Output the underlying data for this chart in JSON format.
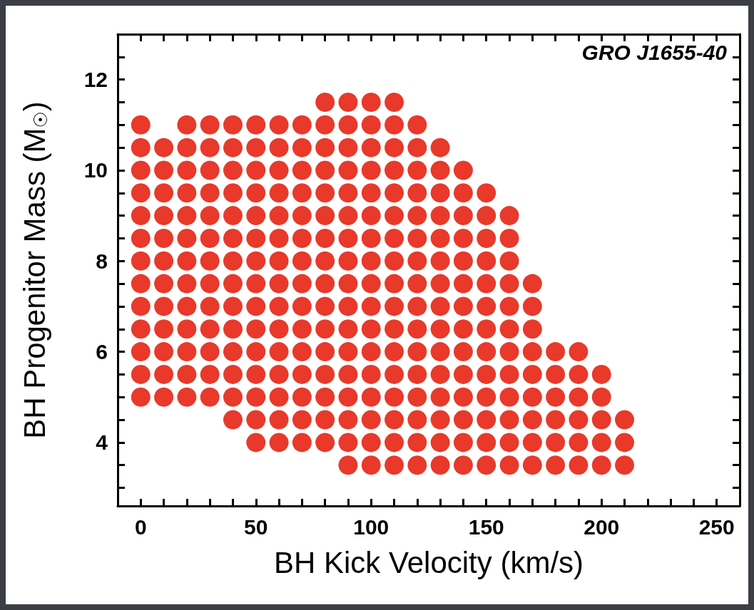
{
  "chart_data": {
    "type": "scatter",
    "xlabel": "BH Kick Velocity (km/s)",
    "ylabel": "BH Progenitor Mass (M$_{☉}$)",
    "annotations": [
      "GRO J1655-40"
    ],
    "marker": "circle",
    "grid": false,
    "xlim": [
      -10,
      260
    ],
    "ylim": [
      2.6,
      13
    ],
    "xticks": [
      0,
      {
        "value": 10,
        "label": null
      },
      {
        "value": 20,
        "label": null
      },
      {
        "value": 30,
        "label": null
      },
      {
        "value": 40,
        "label": null
      },
      50,
      {
        "value": 60,
        "label": null
      },
      {
        "value": 70,
        "label": null
      },
      {
        "value": 80,
        "label": null
      },
      {
        "value": 90,
        "label": null
      },
      100,
      {
        "value": 110,
        "label": null
      },
      {
        "value": 120,
        "label": null
      },
      {
        "value": 130,
        "label": null
      },
      {
        "value": 140,
        "label": null
      },
      150,
      {
        "value": 160,
        "label": null
      },
      {
        "value": 170,
        "label": null
      },
      {
        "value": 180,
        "label": null
      },
      {
        "value": 190,
        "label": null
      },
      200,
      {
        "value": 210,
        "label": null
      },
      {
        "value": 220,
        "label": null
      },
      {
        "value": 230,
        "label": null
      },
      {
        "value": 240,
        "label": null
      },
      250
    ],
    "yticks": [
      {
        "value": 3,
        "label": null
      },
      4,
      {
        "value": 5,
        "label": null
      },
      6,
      {
        "value": 7,
        "label": null
      },
      8,
      {
        "value": 9,
        "label": null
      },
      10,
      {
        "value": 11,
        "label": null
      },
      12,
      {
        "value": 3.5,
        "label": null
      },
      {
        "value": 4.5,
        "label": null
      },
      {
        "value": 5.5,
        "label": null
      },
      {
        "value": 6.5,
        "label": null
      },
      {
        "value": 7.5,
        "label": null
      },
      {
        "value": 8.5,
        "label": null
      },
      {
        "value": 9.5,
        "label": null
      },
      {
        "value": 10.5,
        "label": null
      },
      {
        "value": 11.5,
        "label": null
      },
      {
        "value": 12.5,
        "label": null
      }
    ],
    "series": [
      {
        "color": "#e8392a",
        "x": [
          0,
          0,
          0,
          0,
          0,
          0,
          0,
          0,
          0,
          0,
          0,
          0,
          0,
          10,
          10,
          10,
          10,
          10,
          10,
          10,
          10,
          10,
          10,
          10,
          10,
          20,
          20,
          20,
          20,
          20,
          20,
          20,
          20,
          20,
          20,
          20,
          20,
          20,
          30,
          30,
          30,
          30,
          30,
          30,
          30,
          30,
          30,
          30,
          30,
          30,
          30,
          40,
          40,
          40,
          40,
          40,
          40,
          40,
          40,
          40,
          40,
          40,
          40,
          40,
          40,
          50,
          50,
          50,
          50,
          50,
          50,
          50,
          50,
          50,
          50,
          50,
          50,
          50,
          50,
          50,
          60,
          60,
          60,
          60,
          60,
          60,
          60,
          60,
          60,
          60,
          60,
          60,
          60,
          60,
          60,
          70,
          70,
          70,
          70,
          70,
          70,
          70,
          70,
          70,
          70,
          70,
          70,
          70,
          70,
          70,
          80,
          80,
          80,
          80,
          80,
          80,
          80,
          80,
          80,
          80,
          80,
          80,
          80,
          80,
          80,
          80,
          90,
          90,
          90,
          90,
          90,
          90,
          90,
          90,
          90,
          90,
          90,
          90,
          90,
          90,
          90,
          90,
          90,
          100,
          100,
          100,
          100,
          100,
          100,
          100,
          100,
          100,
          100,
          100,
          100,
          100,
          100,
          100,
          100,
          100,
          110,
          110,
          110,
          110,
          110,
          110,
          110,
          110,
          110,
          110,
          110,
          110,
          110,
          110,
          110,
          110,
          110,
          120,
          120,
          120,
          120,
          120,
          120,
          120,
          120,
          120,
          120,
          120,
          120,
          120,
          120,
          120,
          120,
          130,
          130,
          130,
          130,
          130,
          130,
          130,
          130,
          130,
          130,
          130,
          130,
          130,
          130,
          130,
          140,
          140,
          140,
          140,
          140,
          140,
          140,
          140,
          140,
          140,
          140,
          140,
          140,
          140,
          150,
          150,
          150,
          150,
          150,
          150,
          150,
          150,
          150,
          150,
          150,
          150,
          150,
          160,
          160,
          160,
          160,
          160,
          160,
          160,
          160,
          160,
          160,
          160,
          160,
          170,
          170,
          170,
          170,
          170,
          170,
          170,
          170,
          170,
          180,
          180,
          180,
          180,
          180,
          180,
          190,
          190,
          190,
          190,
          190,
          190,
          200,
          200,
          200,
          200,
          200,
          210,
          210,
          210
        ],
        "values": [
          5,
          5.5,
          6,
          6.5,
          7,
          7.5,
          8,
          8.5,
          9,
          9.5,
          10,
          10.5,
          11,
          5,
          5.5,
          6,
          6.5,
          7,
          7.5,
          8,
          8.5,
          9,
          9.5,
          10,
          10.5,
          5,
          5.5,
          6,
          6.5,
          7,
          7.5,
          8,
          8.5,
          9,
          9.5,
          10,
          10.5,
          11,
          5,
          5.5,
          6,
          6.5,
          7,
          7.5,
          8,
          8.5,
          9,
          9.5,
          10,
          10.5,
          11,
          4.5,
          5,
          5.5,
          6,
          6.5,
          7,
          7.5,
          8,
          8.5,
          9,
          9.5,
          10,
          10.5,
          11,
          4,
          4.5,
          5,
          5.5,
          6,
          6.5,
          7,
          7.5,
          8,
          8.5,
          9,
          9.5,
          10,
          10.5,
          11,
          4,
          4.5,
          5,
          5.5,
          6,
          6.5,
          7,
          7.5,
          8,
          8.5,
          9,
          9.5,
          10,
          10.5,
          11,
          4,
          4.5,
          5,
          5.5,
          6,
          6.5,
          7,
          7.5,
          8,
          8.5,
          9,
          9.5,
          10,
          10.5,
          11,
          4,
          4.5,
          5,
          5.5,
          6,
          6.5,
          7,
          7.5,
          8,
          8.5,
          9,
          9.5,
          10,
          10.5,
          11,
          11.5,
          3.5,
          4,
          4.5,
          5,
          5.5,
          6,
          6.5,
          7,
          7.5,
          8,
          8.5,
          9,
          9.5,
          10,
          10.5,
          11,
          11.5,
          3.5,
          4,
          4.5,
          5,
          5.5,
          6,
          6.5,
          7,
          7.5,
          8,
          8.5,
          9,
          9.5,
          10,
          10.5,
          11,
          11.5,
          3.5,
          4,
          4.5,
          5,
          5.5,
          6,
          6.5,
          7,
          7.5,
          8,
          8.5,
          9,
          9.5,
          10,
          10.5,
          11,
          11.5,
          3.5,
          4,
          4.5,
          5,
          5.5,
          6,
          6.5,
          7,
          7.5,
          8,
          8.5,
          9,
          9.5,
          10,
          10.5,
          11,
          3.5,
          4,
          4.5,
          5,
          5.5,
          6,
          6.5,
          7,
          7.5,
          8,
          8.5,
          9,
          9.5,
          10,
          10.5,
          3.5,
          4,
          4.5,
          5,
          5.5,
          6,
          6.5,
          7,
          7.5,
          8,
          8.5,
          9,
          9.5,
          10,
          3.5,
          4,
          4.5,
          5,
          5.5,
          6,
          6.5,
          7,
          7.5,
          8,
          8.5,
          9,
          9.5,
          3.5,
          4,
          4.5,
          5,
          5.5,
          6,
          6.5,
          7,
          7.5,
          8,
          8.5,
          9,
          3.5,
          4,
          4.5,
          5,
          5.5,
          6,
          6.5,
          7,
          7.5,
          3.5,
          4,
          4.5,
          5,
          5.5,
          6,
          3.5,
          4,
          4.5,
          5,
          5.5,
          6,
          3.5,
          4,
          4.5,
          5,
          5.5,
          3.5,
          4,
          4.5
        ]
      }
    ]
  }
}
